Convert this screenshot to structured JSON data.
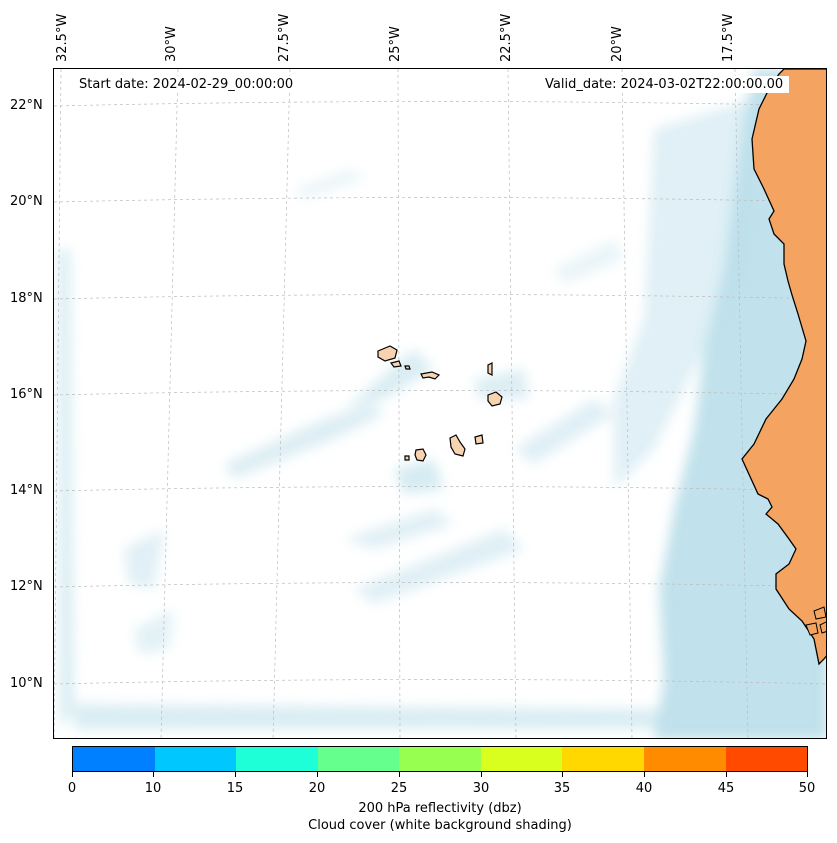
{
  "map": {
    "start_date": "Start date: 2024-02-29_00:00:00",
    "valid_date": "Valid_date: 2024-03-02T22:00:00.00",
    "lon_labels": [
      "32.5°W",
      "30°W",
      "27.5°W",
      "25°W",
      "22.5°W",
      "20°W",
      "17.5°W"
    ],
    "lat_labels": [
      "22°N",
      "20°N",
      "18°N",
      "16°N",
      "14°N",
      "12°N",
      "10°N"
    ],
    "colors": {
      "land_mainland": "#f4a460",
      "land_islands": "#f8d3b0",
      "cloud_shading": "#add8e6",
      "gridline": "#bbbbbb"
    }
  },
  "colorbar": {
    "ticks": [
      "0",
      "10",
      "15",
      "20",
      "25",
      "30",
      "35",
      "40",
      "45",
      "50"
    ],
    "colors": [
      "#0080ff",
      "#00c8ff",
      "#1effd8",
      "#64ff8c",
      "#96ff50",
      "#d8ff1e",
      "#ffd800",
      "#ff8c00",
      "#ff4a00"
    ],
    "label_line1": "200 hPa reflectivity (dbz)",
    "label_line2": "Cloud cover (white background shading)"
  }
}
